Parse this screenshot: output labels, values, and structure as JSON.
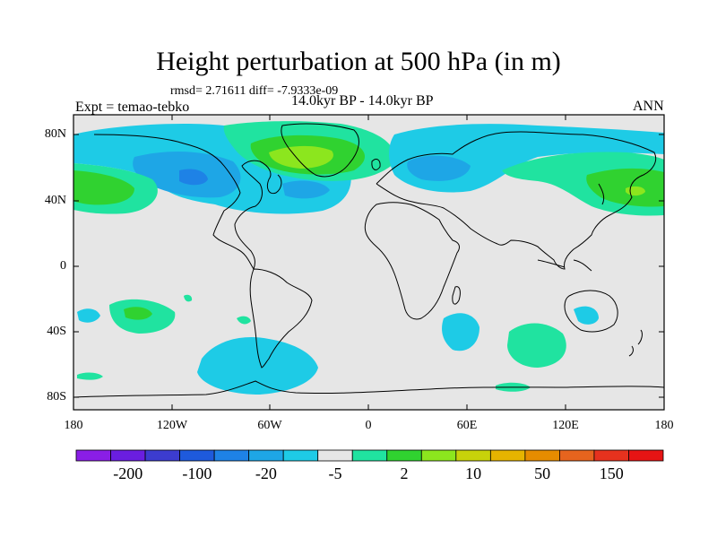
{
  "title": "Height perturbation at 500 hPa (in m)",
  "stats": "rmsd= 2.71611 diff= -7.9333e-09",
  "experiment": "Expt = temao-tebko",
  "period": "14.0kyr BP - 14.0kyr BP",
  "season": "ANN",
  "lat_ticks": [
    "80N",
    "40N",
    "0",
    "40S",
    "80S"
  ],
  "lon_ticks": [
    "180",
    "120W",
    "60W",
    "0",
    "60E",
    "120E",
    "180"
  ],
  "colorbar": {
    "colors": [
      "#8a1ee6",
      "#6a1ee0",
      "#3c3ccf",
      "#1e5adc",
      "#1e82e6",
      "#1ea6e6",
      "#1ecbe6",
      "#e6e6e6",
      "#20e3a0",
      "#30d230",
      "#8ce61e",
      "#c8d20a",
      "#e6b400",
      "#e68c00",
      "#e6641e",
      "#e6321e",
      "#e61414"
    ],
    "labels": [
      "-200",
      "-100",
      "-20",
      "-5",
      "2",
      "10",
      "50",
      "150"
    ]
  },
  "colors": {
    "neutral": "#e6e6e6",
    "cyan": "#1ecbe6",
    "light_blue": "#1ea6e6",
    "blue": "#1e82e6",
    "teal_green": "#20e3a0",
    "green": "#30d230",
    "yellow_green": "#8ce61e"
  }
}
